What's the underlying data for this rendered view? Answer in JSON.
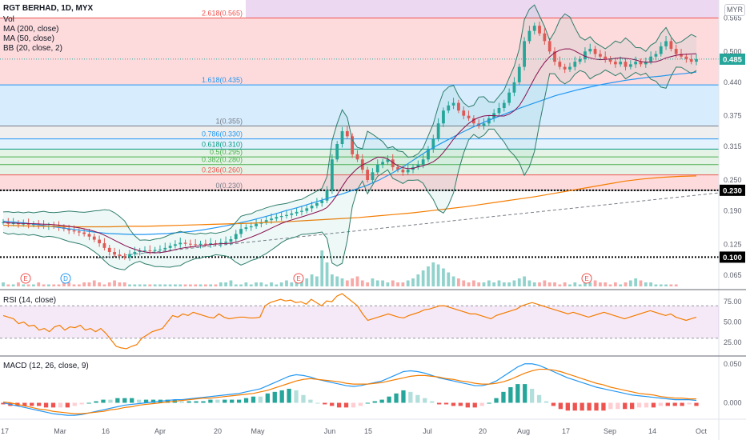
{
  "header": {
    "symbol": "RGT BERHAD, 1D, MYX",
    "indicators": [
      "Vol",
      "MA (200, close)",
      "MA (50, close)",
      "BB (20, close, 2)"
    ],
    "currency": "MYR"
  },
  "rsi_panel": {
    "label": "RSI (14, close)"
  },
  "macd_panel": {
    "label": "MACD (12, 26, close, 9)"
  },
  "colors": {
    "up": "#26a69a",
    "down": "#ef5350",
    "ma200": "#f57c00",
    "ma50": "#2196f3",
    "bb": "#2e7d6b",
    "rsi": "#f57c00",
    "macd": "#2196f3",
    "signal": "#f57c00",
    "last_price_badge": "#26a69a",
    "level_badge": "#000000"
  },
  "chart_data": [
    {
      "type": "candlestick",
      "title": "RGT BERHAD, 1D, MYX",
      "ylim": [
        0.04,
        0.6
      ],
      "price_ticks": [
        "0.565",
        "0.500",
        "0.440",
        "0.375",
        "0.315",
        "0.250",
        "0.190",
        "0.125",
        "0.065"
      ],
      "x_labels": [
        "17",
        "Mar",
        "16",
        "Apr",
        "20",
        "May",
        "Jun",
        "15",
        "Jul",
        "20",
        "Aug",
        "17",
        "Sep",
        "14",
        "Oct"
      ],
      "last_price": "0.485",
      "horizontal_levels": [
        "0.230",
        "0.100"
      ],
      "fibonacci_levels": [
        {
          "label": "2.618(0.565)",
          "value": 0.565
        },
        {
          "label": "1.618(0.435)",
          "value": 0.435
        },
        {
          "label": "1(0.355)",
          "value": 0.355
        },
        {
          "label": "0.786(0.330)",
          "value": 0.33
        },
        {
          "label": "0.618(0.310)",
          "value": 0.31
        },
        {
          "label": "0.5(0.295)",
          "value": 0.295
        },
        {
          "label": "0.382(0.280)",
          "value": 0.28
        },
        {
          "label": "0.236(0.260)",
          "value": 0.26
        },
        {
          "label": "0(0.230)",
          "value": 0.23
        }
      ],
      "event_markers": [
        "E",
        "D",
        "E",
        "E"
      ],
      "close_series": [
        0.168,
        0.165,
        0.166,
        0.164,
        0.165,
        0.163,
        0.164,
        0.162,
        0.16,
        0.161,
        0.16,
        0.158,
        0.155,
        0.152,
        0.15,
        0.148,
        0.145,
        0.14,
        0.134,
        0.127,
        0.118,
        0.11,
        0.105,
        0.102,
        0.1,
        0.106,
        0.11,
        0.112,
        0.113,
        0.112,
        0.114,
        0.115,
        0.118,
        0.122,
        0.125,
        0.128,
        0.126,
        0.125,
        0.124,
        0.126,
        0.125,
        0.127,
        0.126,
        0.128,
        0.13,
        0.135,
        0.145,
        0.155,
        0.158,
        0.16,
        0.165,
        0.168,
        0.172,
        0.175,
        0.178,
        0.18,
        0.182,
        0.185,
        0.188,
        0.19,
        0.195,
        0.2,
        0.205,
        0.21,
        0.23,
        0.29,
        0.32,
        0.345,
        0.335,
        0.3,
        0.29,
        0.27,
        0.25,
        0.265,
        0.28,
        0.285,
        0.29,
        0.275,
        0.27,
        0.265,
        0.27,
        0.275,
        0.28,
        0.29,
        0.31,
        0.33,
        0.36,
        0.385,
        0.395,
        0.4,
        0.385,
        0.375,
        0.37,
        0.36,
        0.355,
        0.36,
        0.37,
        0.38,
        0.39,
        0.4,
        0.42,
        0.44,
        0.47,
        0.52,
        0.54,
        0.55,
        0.535,
        0.52,
        0.5,
        0.48,
        0.47,
        0.465,
        0.47,
        0.48,
        0.485,
        0.5,
        0.505,
        0.495,
        0.49,
        0.485,
        0.48,
        0.475,
        0.48,
        0.47,
        0.475,
        0.48,
        0.475,
        0.48,
        0.49,
        0.495,
        0.51,
        0.52,
        0.505,
        0.495,
        0.49,
        0.485,
        0.48,
        0.485
      ],
      "ma50_series": [
        0.17,
        0.168,
        0.166,
        0.163,
        0.16,
        0.157,
        0.154,
        0.151,
        0.148,
        0.146,
        0.145,
        0.144,
        0.144,
        0.145,
        0.146,
        0.148,
        0.15,
        0.153,
        0.157,
        0.161,
        0.166,
        0.171,
        0.177,
        0.183,
        0.19,
        0.196,
        0.203,
        0.21,
        0.217,
        0.224,
        0.232,
        0.24,
        0.25,
        0.262,
        0.275,
        0.29,
        0.305,
        0.318,
        0.33,
        0.342,
        0.353,
        0.363,
        0.372,
        0.381,
        0.39,
        0.398,
        0.406,
        0.414,
        0.42,
        0.426,
        0.431,
        0.436,
        0.44,
        0.444,
        0.447,
        0.45,
        0.452,
        0.455,
        0.457,
        0.46
      ],
      "ma200_series": [
        0.162,
        0.161,
        0.16,
        0.16,
        0.159,
        0.159,
        0.159,
        0.16,
        0.16,
        0.161,
        0.162,
        0.163,
        0.164,
        0.165,
        0.166,
        0.168,
        0.169,
        0.171,
        0.173,
        0.175,
        0.177,
        0.18,
        0.183,
        0.186,
        0.19,
        0.194,
        0.198,
        0.203,
        0.208,
        0.213,
        0.218,
        0.224,
        0.23,
        0.236,
        0.242,
        0.248,
        0.252,
        0.255,
        0.257,
        0.258
      ]
    },
    {
      "type": "bar",
      "title": "Vol",
      "volume_series": [
        2,
        1,
        1,
        2,
        1,
        1,
        1,
        2,
        1,
        1,
        1,
        1,
        2,
        2,
        1,
        1,
        2,
        2,
        3,
        2,
        1,
        2,
        3,
        2,
        2,
        1,
        1,
        1,
        1,
        1,
        1,
        1,
        1,
        1,
        1,
        1,
        1,
        1,
        1,
        1,
        1,
        1,
        1,
        2,
        2,
        3,
        1,
        1,
        2,
        1,
        2,
        2,
        1,
        2,
        1,
        2,
        3,
        2,
        2,
        3,
        4,
        6,
        5,
        18,
        12,
        6,
        5,
        4,
        3,
        4,
        5,
        3,
        2,
        4,
        3,
        3,
        2,
        3,
        2,
        2,
        3,
        4,
        6,
        8,
        10,
        12,
        11,
        9,
        7,
        5,
        4,
        3,
        2,
        3,
        2,
        2,
        3,
        2,
        3,
        2,
        2,
        3,
        4,
        5,
        3,
        2,
        2,
        3,
        2,
        2,
        1,
        2,
        1,
        2,
        1,
        2,
        2,
        3,
        2,
        2,
        1,
        2,
        1,
        2,
        3,
        4,
        3,
        2,
        2,
        1,
        1,
        1,
        1,
        1
      ]
    },
    {
      "type": "line",
      "title": "RSI (14, close)",
      "ylim": [
        10,
        90
      ],
      "y_ticks": [
        "75.00",
        "50.00",
        "25.00"
      ],
      "band": [
        30,
        70
      ],
      "rsi_series": [
        58,
        56,
        54,
        48,
        50,
        45,
        46,
        40,
        42,
        38,
        44,
        46,
        40,
        44,
        43,
        46,
        40,
        42,
        38,
        42,
        36,
        28,
        20,
        18,
        17,
        20,
        22,
        30,
        34,
        38,
        40,
        42,
        50,
        58,
        56,
        60,
        58,
        62,
        60,
        58,
        56,
        55,
        60,
        56,
        54,
        55,
        56,
        56,
        55,
        55,
        56,
        70,
        74,
        76,
        78,
        76,
        77,
        74,
        75,
        72,
        78,
        74,
        70,
        76,
        75,
        82,
        85,
        80,
        75,
        70,
        60,
        52,
        54,
        56,
        58,
        60,
        58,
        56,
        55,
        58,
        60,
        62,
        65,
        66,
        68,
        70,
        70,
        68,
        66,
        64,
        62,
        60,
        60,
        58,
        56,
        54,
        58,
        60,
        62,
        64,
        66,
        70,
        72,
        74,
        72,
        70,
        68,
        66,
        64,
        62,
        60,
        62,
        60,
        58,
        56,
        58,
        60,
        62,
        60,
        58,
        56,
        54,
        56,
        58,
        60,
        62,
        64,
        62,
        60,
        58,
        60,
        56,
        54,
        52,
        54,
        56
      ]
    },
    {
      "type": "line",
      "title": "MACD (12, 26, close, 9)",
      "y_ticks": [
        "0.050",
        "0.000"
      ],
      "macd_series": [
        0.0,
        -0.002,
        -0.004,
        -0.006,
        -0.008,
        -0.01,
        -0.012,
        -0.014,
        -0.015,
        -0.016,
        -0.016,
        -0.015,
        -0.013,
        -0.011,
        -0.009,
        -0.007,
        -0.005,
        -0.003,
        -0.002,
        -0.001,
        0.0,
        0.001,
        0.002,
        0.003,
        0.004,
        0.004,
        0.005,
        0.006,
        0.007,
        0.008,
        0.009,
        0.01,
        0.011,
        0.012,
        0.014,
        0.016,
        0.018,
        0.022,
        0.026,
        0.03,
        0.034,
        0.036,
        0.035,
        0.033,
        0.03,
        0.028,
        0.026,
        0.024,
        0.022,
        0.021,
        0.022,
        0.024,
        0.026,
        0.028,
        0.032,
        0.036,
        0.04,
        0.041,
        0.04,
        0.038,
        0.035,
        0.032,
        0.03,
        0.028,
        0.026,
        0.024,
        0.022,
        0.022,
        0.024,
        0.028,
        0.034,
        0.04,
        0.046,
        0.05,
        0.05,
        0.048,
        0.044,
        0.04,
        0.036,
        0.032,
        0.029,
        0.026,
        0.023,
        0.02,
        0.018,
        0.016,
        0.014,
        0.012,
        0.01,
        0.009,
        0.008,
        0.007,
        0.006,
        0.005,
        0.004,
        0.004,
        0.004,
        0.003
      ],
      "signal_series": [
        0.001,
        0.0,
        -0.002,
        -0.004,
        -0.006,
        -0.008,
        -0.009,
        -0.011,
        -0.012,
        -0.013,
        -0.014,
        -0.014,
        -0.013,
        -0.012,
        -0.011,
        -0.009,
        -0.008,
        -0.006,
        -0.005,
        -0.003,
        -0.002,
        -0.001,
        0.0,
        0.001,
        0.002,
        0.003,
        0.004,
        0.005,
        0.006,
        0.006,
        0.007,
        0.008,
        0.009,
        0.01,
        0.011,
        0.012,
        0.014,
        0.016,
        0.019,
        0.022,
        0.025,
        0.028,
        0.03,
        0.031,
        0.03,
        0.029,
        0.028,
        0.027,
        0.025,
        0.024,
        0.024,
        0.024,
        0.025,
        0.026,
        0.028,
        0.03,
        0.032,
        0.034,
        0.035,
        0.035,
        0.034,
        0.033,
        0.031,
        0.03,
        0.028,
        0.027,
        0.025,
        0.024,
        0.024,
        0.025,
        0.027,
        0.03,
        0.034,
        0.038,
        0.041,
        0.043,
        0.043,
        0.042,
        0.04,
        0.037,
        0.034,
        0.031,
        0.028,
        0.025,
        0.023,
        0.02,
        0.018,
        0.016,
        0.014,
        0.012,
        0.011,
        0.01,
        0.008,
        0.007,
        0.006,
        0.006,
        0.005,
        0.005
      ]
    }
  ]
}
